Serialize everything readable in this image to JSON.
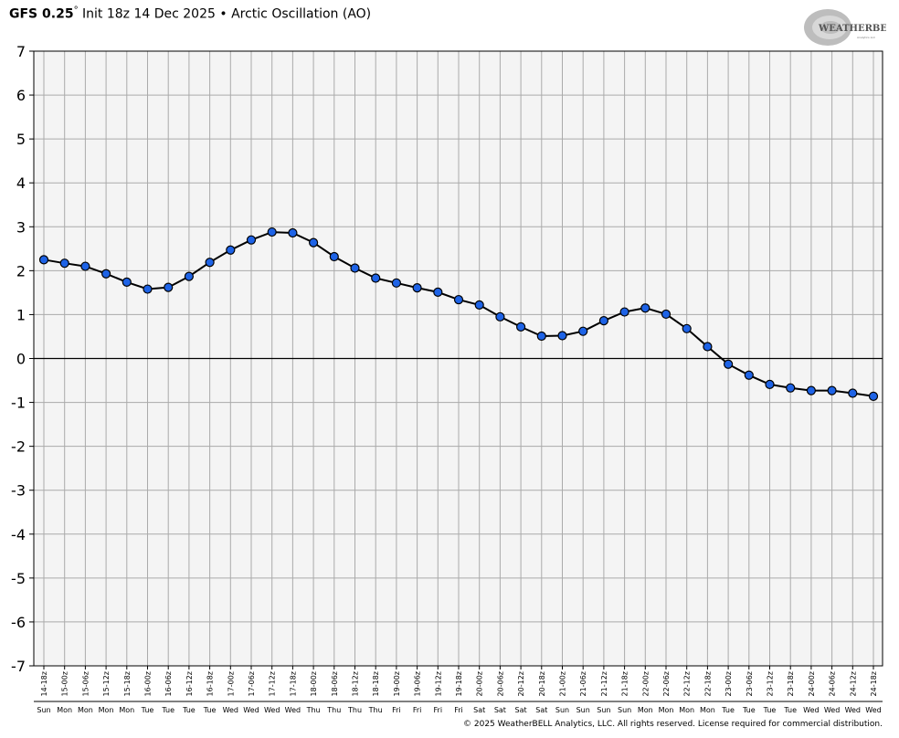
{
  "header": {
    "model": "GFS 0.25",
    "degree": "°",
    "init": "Init 18z 14 Dec 2025",
    "separator": "•",
    "title": "Arctic Oscillation (AO)"
  },
  "logo": {
    "text": "WEATHERBELL",
    "sub": "Analytics LLC"
  },
  "footer": {
    "copyright": "© 2025 WeatherBELL Analytics, LLC. All rights reserved. License required for commercial distribution."
  },
  "colors": {
    "plot_bg": "#f4f4f4",
    "grid": "#aaaaaa",
    "marker": "#1e63e6",
    "line": "#000000"
  },
  "chart_data": {
    "type": "line",
    "title": "Arctic Oscillation (AO)",
    "ylim": [
      -7,
      7
    ],
    "yticks": [
      7,
      6,
      5,
      4,
      3,
      2,
      1,
      0,
      -1,
      -2,
      -3,
      -4,
      -5,
      -6,
      -7
    ],
    "grid": true,
    "categories": [
      "14-18z",
      "15-00z",
      "15-06z",
      "15-12z",
      "15-18z",
      "16-00z",
      "16-06z",
      "16-12z",
      "16-18z",
      "17-00z",
      "17-06z",
      "17-12z",
      "17-18z",
      "18-00z",
      "18-06z",
      "18-12z",
      "18-18z",
      "19-00z",
      "19-06z",
      "19-12z",
      "19-18z",
      "20-00z",
      "20-06z",
      "20-12z",
      "20-18z",
      "21-00z",
      "21-06z",
      "21-12z",
      "21-18z",
      "22-00z",
      "22-06z",
      "22-12z",
      "22-18z",
      "23-00z",
      "23-06z",
      "23-12z",
      "23-18z",
      "24-00z",
      "24-06z",
      "24-12z",
      "24-18z"
    ],
    "days": [
      "Sun",
      "Mon",
      "Mon",
      "Mon",
      "Mon",
      "Tue",
      "Tue",
      "Tue",
      "Tue",
      "Wed",
      "Wed",
      "Wed",
      "Wed",
      "Thu",
      "Thu",
      "Thu",
      "Thu",
      "Fri",
      "Fri",
      "Fri",
      "Fri",
      "Sat",
      "Sat",
      "Sat",
      "Sat",
      "Sun",
      "Sun",
      "Sun",
      "Sun",
      "Mon",
      "Mon",
      "Mon",
      "Mon",
      "Tue",
      "Tue",
      "Tue",
      "Tue",
      "Wed",
      "Wed",
      "Wed",
      "Wed"
    ],
    "series": [
      {
        "values": [
          2.25,
          2.17,
          2.1,
          1.93,
          1.74,
          1.58,
          1.62,
          1.87,
          2.19,
          2.47,
          2.7,
          2.88,
          2.86,
          2.64,
          2.32,
          2.06,
          1.83,
          1.72,
          1.61,
          1.51,
          1.34,
          1.22,
          0.95,
          0.72,
          0.51,
          0.52,
          0.62,
          0.86,
          1.06,
          1.15,
          1.01,
          0.68,
          0.27,
          -0.13,
          -0.38,
          -0.59,
          -0.67,
          -0.73,
          -0.73,
          -0.79,
          -0.86
        ]
      }
    ]
  }
}
